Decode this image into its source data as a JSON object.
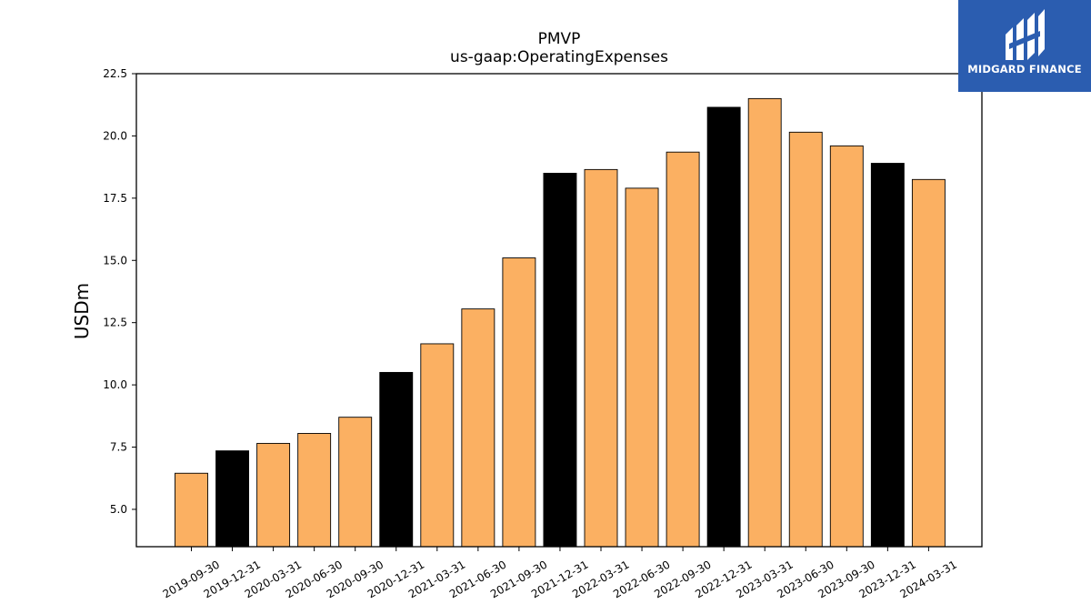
{
  "chart_data": {
    "type": "bar",
    "title": "PMVP",
    "subtitle": "us-gaap:OperatingExpenses",
    "ylabel": "USDm",
    "xlabel": "",
    "ylim": [
      3.5,
      22.5
    ],
    "yticks": [
      "5.0",
      "7.5",
      "10.0",
      "12.5",
      "15.0",
      "17.5",
      "20.0",
      "22.5"
    ],
    "categories": [
      "2019-09-30",
      "2019-12-31",
      "2020-03-31",
      "2020-06-30",
      "2020-09-30",
      "2020-12-31",
      "2021-03-31",
      "2021-06-30",
      "2021-09-30",
      "2021-12-31",
      "2022-03-31",
      "2022-06-30",
      "2022-09-30",
      "2022-12-31",
      "2023-03-31",
      "2023-06-30",
      "2023-09-30",
      "2023-12-31",
      "2024-03-31"
    ],
    "values": [
      6.45,
      7.35,
      7.65,
      8.05,
      8.7,
      10.5,
      11.65,
      13.05,
      15.1,
      18.5,
      18.65,
      17.9,
      19.35,
      21.15,
      21.5,
      20.15,
      19.6,
      18.9,
      18.25
    ],
    "colors": {
      "quarter": "#fbb062",
      "year_end": "#000000",
      "edge": "#000000"
    },
    "year_end_categories": [
      "2019-12-31",
      "2020-12-31",
      "2021-12-31",
      "2022-12-31",
      "2023-12-31"
    ],
    "grid": false,
    "legend": "none"
  },
  "logo": {
    "text": "MIDGARD FINANCE",
    "background": "#2b5db0"
  }
}
